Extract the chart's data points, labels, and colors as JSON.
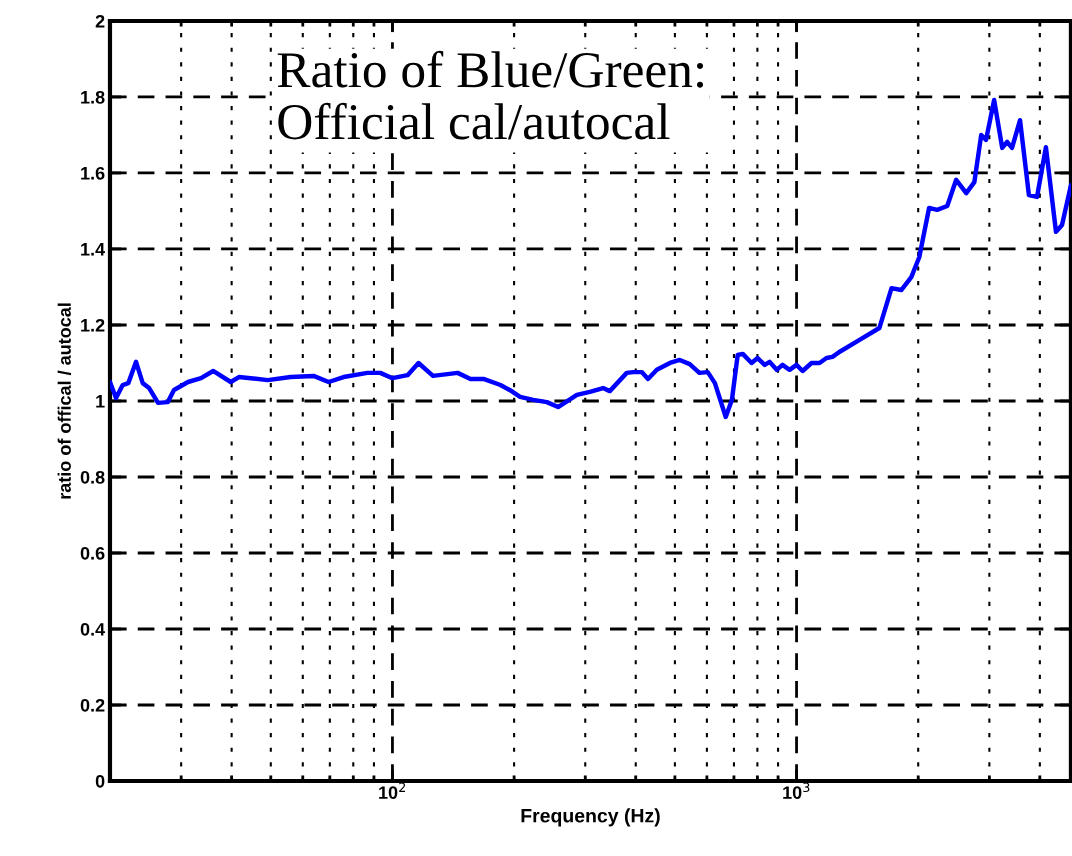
{
  "chart_data": {
    "type": "line",
    "xlabel": "Frequency (Hz)",
    "ylabel": "ratio of offical / autocal",
    "annotations": [
      "Ratio of Blue/Green:\nOfficial cal/autocal"
    ],
    "log": "x",
    "grid": true,
    "line_style": "solid",
    "marker": "none",
    "xlim": [
      20,
      4775
    ],
    "xticks": [
      {
        "value": 100,
        "label": "10$^{2}$"
      },
      {
        "value": 1000,
        "label": "10$^{3}$"
      }
    ],
    "ylim": [
      0,
      2
    ],
    "yticks": [
      0,
      0.2,
      0.4,
      0.6,
      0.8,
      1,
      1.2,
      1.4,
      1.6,
      1.8,
      2
    ],
    "series": [
      {
        "color": "#0000ff",
        "x": [
          20,
          20.7,
          21.5,
          22.2,
          23.2,
          24.1,
          25.0,
          26.3,
          27.8,
          28.8,
          31.2,
          33.6,
          36.0,
          39.8,
          41.7,
          44.6,
          49.1,
          56.0,
          63.8,
          69.5,
          75.7,
          86.7,
          93.3,
          100,
          109,
          116,
          126,
          145,
          156,
          168,
          185,
          195,
          207,
          223,
          241,
          257,
          286,
          308,
          332,
          345,
          380,
          394,
          414,
          429,
          451,
          486,
          514,
          544,
          575,
          603,
          628,
          668,
          692,
          715,
          736,
          774,
          801,
          834,
          858,
          893,
          923,
          961,
          1000,
          1035,
          1089,
          1140,
          1186,
          1227,
          1276,
          1432,
          1603,
          1718,
          1816,
          1923,
          2013,
          2128,
          2228,
          2360,
          2483,
          2630,
          2754,
          2864,
          2944,
          3083,
          3228,
          3319,
          3413,
          3573,
          3758,
          3936,
          4141,
          4385,
          4539,
          4775
        ],
        "values": [
          1.05,
          1.008,
          1.042,
          1.047,
          1.103,
          1.047,
          1.034,
          0.995,
          0.997,
          1.029,
          1.05,
          1.06,
          1.079,
          1.05,
          1.063,
          1.06,
          1.055,
          1.063,
          1.066,
          1.05,
          1.063,
          1.074,
          1.074,
          1.06,
          1.068,
          1.1,
          1.066,
          1.074,
          1.058,
          1.058,
          1.042,
          1.029,
          1.011,
          1.003,
          0.997,
          0.984,
          1.016,
          1.024,
          1.034,
          1.026,
          1.074,
          1.076,
          1.076,
          1.058,
          1.082,
          1.1,
          1.108,
          1.097,
          1.074,
          1.076,
          1.047,
          0.958,
          1.003,
          1.121,
          1.124,
          1.1,
          1.113,
          1.095,
          1.103,
          1.082,
          1.095,
          1.082,
          1.095,
          1.079,
          1.1,
          1.1,
          1.113,
          1.116,
          1.129,
          1.161,
          1.192,
          1.297,
          1.292,
          1.326,
          1.379,
          1.508,
          1.503,
          1.513,
          1.582,
          1.547,
          1.576,
          1.7,
          1.687,
          1.792,
          1.666,
          1.682,
          1.666,
          1.739,
          1.542,
          1.537,
          1.668,
          1.445,
          1.463,
          1.568
        ]
      }
    ]
  }
}
